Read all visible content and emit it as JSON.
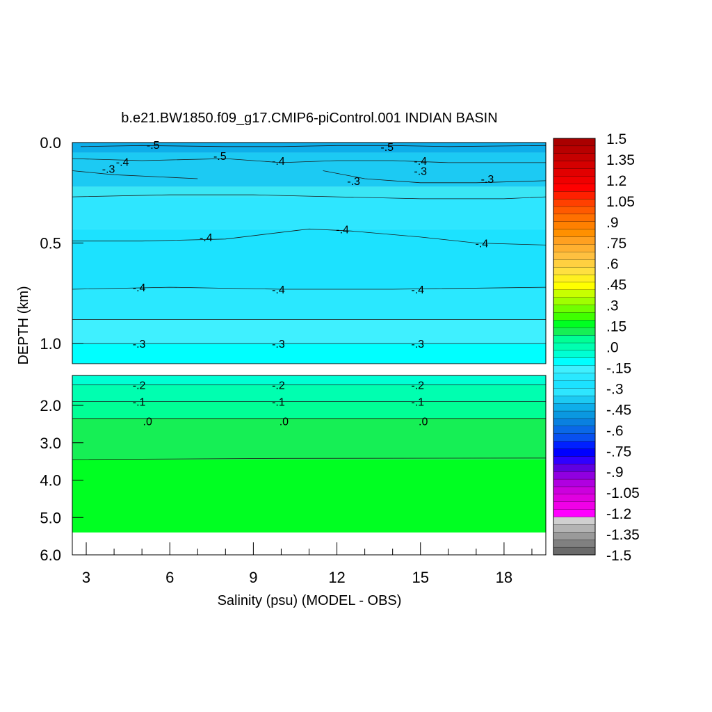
{
  "chart_data": {
    "type": "contour",
    "title": "b.e21.BW1850.f09_g17.CMIP6-piControl.001 INDIAN BASIN",
    "xlabel": "Salinity (psu) (MODEL - OBS)",
    "ylabel": "DEPTH (km)",
    "x_ticks": [
      "3",
      "6",
      "9",
      "12",
      "15",
      "18"
    ],
    "x_tick_values": [
      3,
      6,
      9,
      12,
      15,
      18
    ],
    "xlim": [
      2.5,
      19.5
    ],
    "upper_panel": {
      "ylim": [
        0.0,
        1.1
      ],
      "y_ticks": [
        "0.0",
        "0.5",
        "1.0"
      ],
      "y_tick_values": [
        0.0,
        0.5,
        1.0
      ]
    },
    "lower_panel": {
      "ylim": [
        1.2,
        6.0
      ],
      "y_ticks": [
        "2.0",
        "3.0",
        "4.0",
        "5.0",
        "6.0"
      ],
      "y_tick_values": [
        2.0,
        3.0,
        4.0,
        5.0,
        6.0
      ],
      "data_bottom_depth": 5.4
    },
    "bands": [
      {
        "top": 0.0,
        "bottom": 0.05,
        "color": "#0eaeea"
      },
      {
        "top": 0.05,
        "bottom": 0.22,
        "color": "#1ccaf3"
      },
      {
        "top": 0.22,
        "bottom": 0.27,
        "color": "#3ae6f5"
      },
      {
        "top": 0.27,
        "bottom": 0.43,
        "color": "#2ee6ff"
      },
      {
        "top": 0.43,
        "bottom": 0.73,
        "color": "#1ce2ff"
      },
      {
        "top": 0.73,
        "bottom": 0.88,
        "color": "#2ae8ff"
      },
      {
        "top": 0.88,
        "bottom": 1.0,
        "color": "#3ff0ff"
      },
      {
        "top": 1.0,
        "bottom": 1.1,
        "color": "#00ffff"
      },
      {
        "top": 1.2,
        "bottom": 1.45,
        "color": "#00ffd4"
      },
      {
        "top": 1.45,
        "bottom": 1.9,
        "color": "#00ffb0"
      },
      {
        "top": 1.9,
        "bottom": 2.35,
        "color": "#00ff96"
      },
      {
        "top": 2.35,
        "bottom": 3.45,
        "color": "#16ef55"
      },
      {
        "top": 3.45,
        "bottom": 5.4,
        "color": "#00ff22"
      }
    ],
    "contours": [
      {
        "level": "-.5",
        "x": [
          2.8,
          5,
          8,
          10,
          12,
          14,
          16,
          19.5
        ],
        "y": [
          0.02,
          0.015,
          0.02,
          0.02,
          0.015,
          0.015,
          0.02,
          0.015
        ]
      },
      {
        "level": "-.4",
        "x": [
          2.5,
          5,
          8,
          10,
          12,
          14,
          16,
          19.5
        ],
        "y": [
          0.08,
          0.09,
          0.08,
          0.1,
          0.09,
          0.09,
          0.1,
          0.1
        ]
      },
      {
        "level": "-.3",
        "x": [
          2.5,
          4,
          5.5,
          7
        ],
        "y": [
          0.14,
          0.16,
          0.17,
          0.18
        ]
      },
      {
        "level": "-.3",
        "x": [
          11.5,
          13,
          15,
          17,
          19.5
        ],
        "y": [
          0.14,
          0.18,
          0.2,
          0.2,
          0.19
        ]
      },
      {
        "level": "-.3",
        "x": [
          2.5,
          6,
          9,
          12,
          15,
          18,
          19.5
        ],
        "y": [
          0.27,
          0.26,
          0.26,
          0.27,
          0.28,
          0.28,
          0.27
        ]
      },
      {
        "level": "-.4",
        "x": [
          2.5,
          5,
          8,
          11,
          12.5,
          15,
          17,
          19.5
        ],
        "y": [
          0.49,
          0.49,
          0.48,
          0.43,
          0.44,
          0.47,
          0.5,
          0.51
        ]
      },
      {
        "level": "-.4",
        "x": [
          2.5,
          6,
          10,
          14,
          19.5
        ],
        "y": [
          0.73,
          0.72,
          0.73,
          0.73,
          0.72
        ]
      },
      {
        "level": "-.3",
        "x": [
          2.5,
          8,
          14,
          19.5
        ],
        "y": [
          0.88,
          0.88,
          0.88,
          0.88
        ]
      },
      {
        "level": "-.3",
        "x": [
          2.5,
          19.5
        ],
        "y": [
          1.0,
          1.0
        ]
      },
      {
        "level": "-.2",
        "x": [
          2.5,
          19.5
        ],
        "y": [
          1.45,
          1.45
        ]
      },
      {
        "level": "-.1",
        "x": [
          2.5,
          19.5
        ],
        "y": [
          1.9,
          1.9
        ]
      },
      {
        "level": ".0",
        "x": [
          2.5,
          19.5
        ],
        "y": [
          2.35,
          2.35
        ]
      },
      {
        "level": "",
        "x": [
          2.5,
          10,
          19.5
        ],
        "y": [
          3.45,
          3.42,
          3.41
        ]
      }
    ],
    "contour_labels": [
      {
        "text": "-.5",
        "x": 5.4,
        "y": 0.01
      },
      {
        "text": "-.5",
        "x": 13.8,
        "y": 0.02
      },
      {
        "text": "-.5",
        "x": 7.8,
        "y": 0.065
      },
      {
        "text": "-.4",
        "x": 4.3,
        "y": 0.095
      },
      {
        "text": "-.4",
        "x": 9.9,
        "y": 0.09
      },
      {
        "text": "-.4",
        "x": 15,
        "y": 0.09
      },
      {
        "text": "-.3",
        "x": 3.8,
        "y": 0.13
      },
      {
        "text": "-.3",
        "x": 15,
        "y": 0.14
      },
      {
        "text": "-.3",
        "x": 12.6,
        "y": 0.19
      },
      {
        "text": "-.3",
        "x": 17.4,
        "y": 0.18
      },
      {
        "text": "-.4",
        "x": 7.3,
        "y": 0.47
      },
      {
        "text": "-.4",
        "x": 12.2,
        "y": 0.43
      },
      {
        "text": "-.4",
        "x": 17.2,
        "y": 0.5
      },
      {
        "text": "-.4",
        "x": 4.9,
        "y": 0.72
      },
      {
        "text": "-.4",
        "x": 9.9,
        "y": 0.73
      },
      {
        "text": "-.4",
        "x": 14.9,
        "y": 0.73
      },
      {
        "text": "-.3",
        "x": 4.9,
        "y": 1.0
      },
      {
        "text": "-.3",
        "x": 9.9,
        "y": 1.0
      },
      {
        "text": "-.3",
        "x": 14.9,
        "y": 1.0
      },
      {
        "text": "-.2",
        "x": 4.9,
        "y": 1.45
      },
      {
        "text": "-.2",
        "x": 9.9,
        "y": 1.45
      },
      {
        "text": "-.2",
        "x": 14.9,
        "y": 1.45
      },
      {
        "text": "-.1",
        "x": 4.9,
        "y": 1.9
      },
      {
        "text": "-.1",
        "x": 9.9,
        "y": 1.9
      },
      {
        "text": "-.1",
        "x": 14.9,
        "y": 1.9
      },
      {
        "text": ".0",
        "x": 5.2,
        "y": 2.42
      },
      {
        "text": ".0",
        "x": 10.1,
        "y": 2.42
      },
      {
        "text": ".0",
        "x": 15.1,
        "y": 2.42
      }
    ],
    "colorbar": {
      "labels": [
        ".1.5"
      ],
      "tick_labels": [
        "1.5",
        "1.35",
        "1.2",
        "1.05",
        ".9",
        ".75",
        ".6",
        ".45",
        ".3",
        ".15",
        ".0",
        "-.15",
        "-.3",
        "-.45",
        "-.6",
        "-.75",
        "-.9",
        "-1.05",
        "-1.2",
        "-1.35",
        "-1.5"
      ],
      "colors": [
        "#aa0000",
        "#b80000",
        "#c60000",
        "#d40000",
        "#e20000",
        "#f00000",
        "#ff0000",
        "#ff2000",
        "#ff4000",
        "#ff5a00",
        "#ff7000",
        "#ff8000",
        "#ff9000",
        "#ffa020",
        "#ffb030",
        "#ffc040",
        "#ffd040",
        "#ffe040",
        "#fff020",
        "#ffff00",
        "#c8ff00",
        "#a0ff00",
        "#70ff00",
        "#40ff00",
        "#00ff22",
        "#16ef55",
        "#00ff96",
        "#00ffb0",
        "#00ffd4",
        "#00ffff",
        "#3ff0ff",
        "#2ae8ff",
        "#1ce2ff",
        "#2ee6ff",
        "#1ccaf3",
        "#0eaeea",
        "#0a98e0",
        "#0a80e0",
        "#0a68e8",
        "#0850f0",
        "#0020ff",
        "#0000ff",
        "#3000ff",
        "#6000e0",
        "#9000e0",
        "#b000e0",
        "#cc00dd",
        "#e000e0",
        "#f000e8",
        "#ff00ff",
        "#d0d0d0",
        "#b4b4b4",
        "#9a9a9a",
        "#808080",
        "#6a6a6a"
      ]
    }
  }
}
